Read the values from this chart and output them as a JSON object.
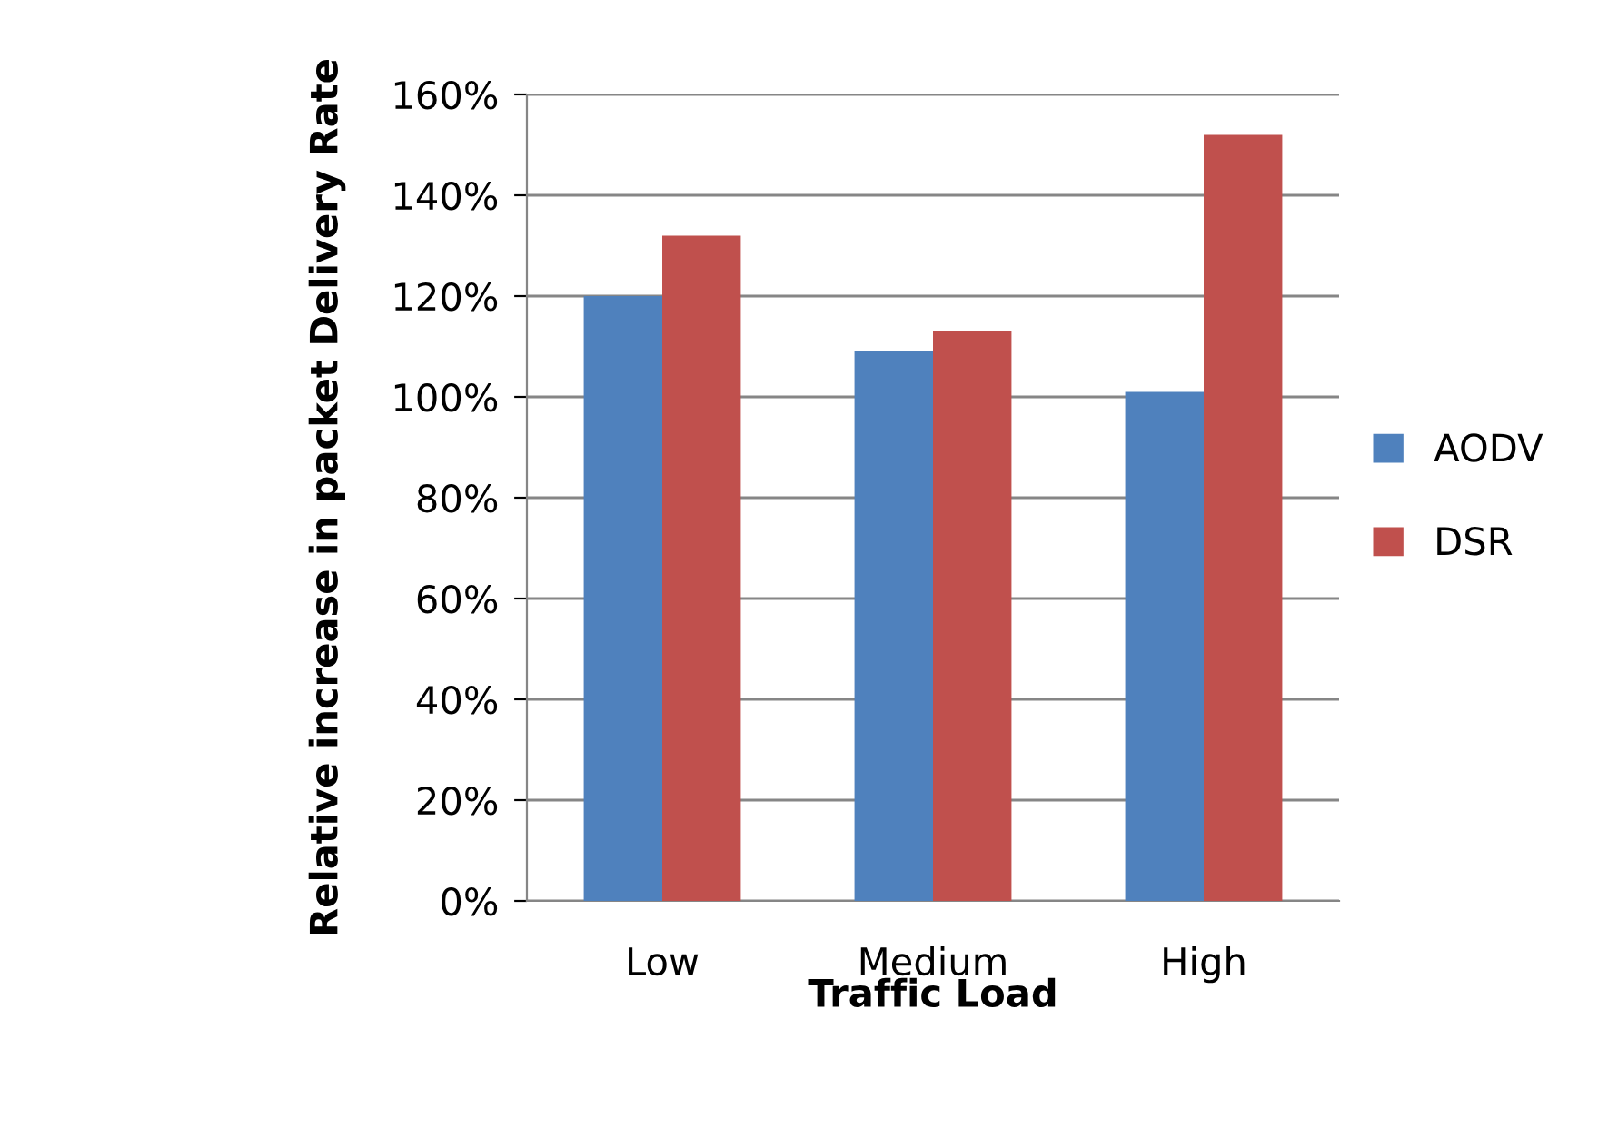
{
  "chart_data": {
    "type": "bar",
    "xlabel": "Traffic Load",
    "ylabel": "Relative increase in packet Delivery Rate",
    "categories": [
      "Low",
      "Medium",
      "High"
    ],
    "series": [
      {
        "name": "AODV",
        "color": "#4f81bd",
        "values": [
          120,
          109,
          101
        ]
      },
      {
        "name": "DSR",
        "color": "#c0504d",
        "values": [
          132,
          113,
          152
        ]
      }
    ],
    "ylim": [
      0,
      160
    ],
    "yticks": [
      {
        "value": 0,
        "label": "0%"
      },
      {
        "value": 20,
        "label": "20%"
      },
      {
        "value": 40,
        "label": "40%"
      },
      {
        "value": 60,
        "label": "60%"
      },
      {
        "value": 80,
        "label": "80%"
      },
      {
        "value": 100,
        "label": "100%"
      },
      {
        "value": 120,
        "label": "120%"
      },
      {
        "value": 140,
        "label": "140%"
      },
      {
        "value": 160,
        "label": "160%"
      }
    ],
    "grid": "y",
    "legend": "right"
  }
}
